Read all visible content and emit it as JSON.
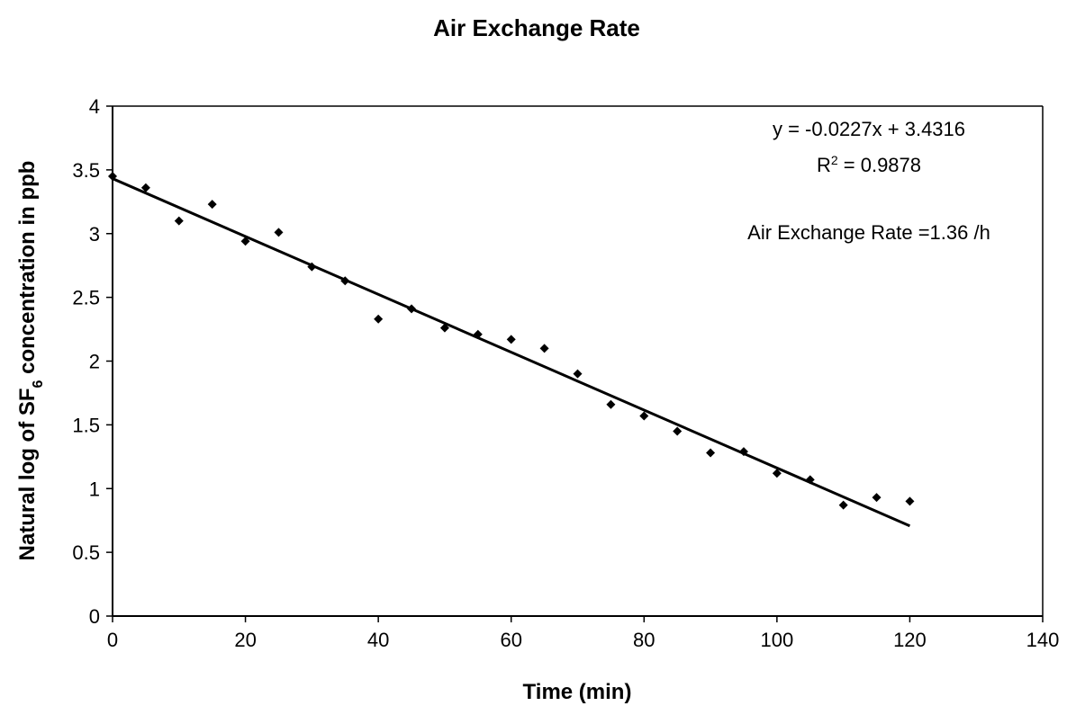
{
  "chart_data": {
    "type": "scatter",
    "title": "Air Exchange Rate",
    "xlabel": "Time (min)",
    "ylabel": {
      "before": "Natural log of SF",
      "subscript": "6",
      "after": " concentration in ppb"
    },
    "xlim": [
      0,
      140
    ],
    "ylim": [
      0,
      4
    ],
    "xticks": [
      0,
      20,
      40,
      60,
      80,
      100,
      120,
      140
    ],
    "yticks": [
      0,
      0.5,
      1,
      1.5,
      2,
      2.5,
      3,
      3.5,
      4
    ],
    "grid": false,
    "legend": "none",
    "series": [
      {
        "x": [
          0,
          5,
          10,
          15,
          20,
          25,
          30,
          35,
          40,
          45,
          50,
          55,
          60,
          65,
          70,
          75,
          80,
          85,
          90,
          95,
          100,
          105,
          110,
          115,
          120
        ],
        "y": [
          3.45,
          3.36,
          3.1,
          3.23,
          2.94,
          3.01,
          2.74,
          2.63,
          2.33,
          2.41,
          2.26,
          2.21,
          2.17,
          2.1,
          1.9,
          1.66,
          1.57,
          1.45,
          1.28,
          1.29,
          1.12,
          1.07,
          0.87,
          0.93,
          0.9
        ],
        "marker": "diamond",
        "color": "#000000"
      }
    ],
    "trendline": {
      "slope": -0.0227,
      "intercept": 3.4316,
      "x_range": [
        0,
        120
      ],
      "color": "#000000"
    },
    "annotations": {
      "equation": "y = -0.0227x + 3.4316",
      "r2_prefix": "R",
      "r2_superscript": "2",
      "r2_suffix": " = 0.9878",
      "rate": "Air Exchange Rate =1.36 /h"
    }
  }
}
